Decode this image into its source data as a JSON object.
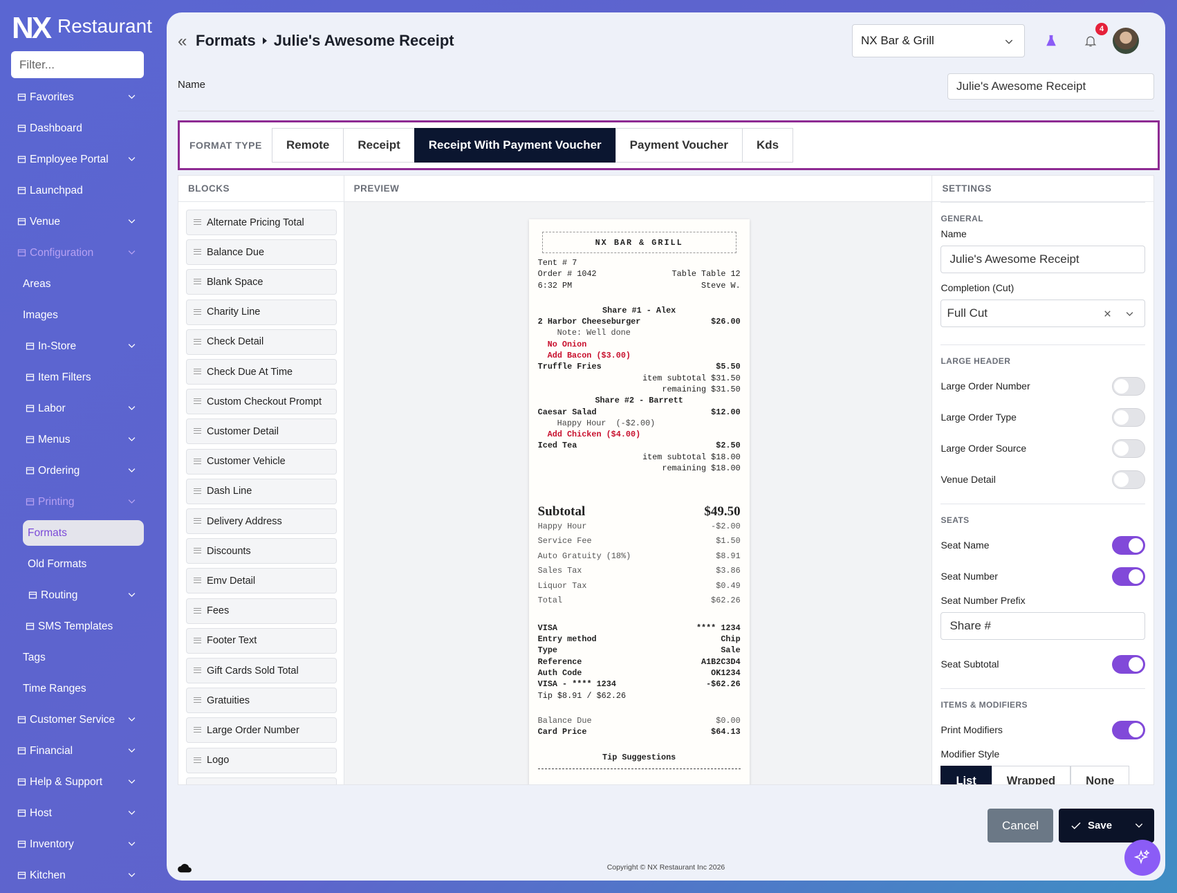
{
  "sidebar": {
    "brand": "NX",
    "brand_name": "Restaurant",
    "filter_placeholder": "Filter...",
    "nav": [
      {
        "label": "Favorites",
        "level": 0,
        "icon": true,
        "expandable": true
      },
      {
        "label": "Dashboard",
        "level": 0,
        "icon": true
      },
      {
        "label": "Employee Portal",
        "level": 0,
        "icon": true,
        "expandable": true
      },
      {
        "label": "Launchpad",
        "level": 0,
        "icon": true
      },
      {
        "label": "Venue",
        "level": 0,
        "icon": true,
        "expandable": true
      },
      {
        "label": "Configuration",
        "level": 0,
        "icon": true,
        "expandable": true,
        "state": "open"
      },
      {
        "label": "Areas",
        "level": 1
      },
      {
        "label": "Images",
        "level": 1
      },
      {
        "label": "In-Store",
        "level": 1,
        "icon": true,
        "expandable": true
      },
      {
        "label": "Item Filters",
        "level": 1,
        "icon": true
      },
      {
        "label": "Labor",
        "level": 1,
        "icon": true,
        "expandable": true
      },
      {
        "label": "Menus",
        "level": 1,
        "icon": true,
        "expandable": true
      },
      {
        "label": "Ordering",
        "level": 1,
        "icon": true,
        "expandable": true
      },
      {
        "label": "Printing",
        "level": 1,
        "icon": true,
        "expandable": true,
        "state": "open"
      },
      {
        "label": "Formats",
        "level": 2,
        "state": "active"
      },
      {
        "label": "Old Formats",
        "level": 2
      },
      {
        "label": "Routing",
        "level": 2,
        "icon": true,
        "expandable": true
      },
      {
        "label": "SMS Templates",
        "level": 1,
        "icon": true
      },
      {
        "label": "Tags",
        "level": 1
      },
      {
        "label": "Time Ranges",
        "level": 1
      },
      {
        "label": "Customer Service",
        "level": 0,
        "icon": true,
        "expandable": true
      },
      {
        "label": "Financial",
        "level": 0,
        "icon": true,
        "expandable": true
      },
      {
        "label": "Help & Support",
        "level": 0,
        "icon": true,
        "expandable": true
      },
      {
        "label": "Host",
        "level": 0,
        "icon": true,
        "expandable": true
      },
      {
        "label": "Inventory",
        "level": 0,
        "icon": true,
        "expandable": true
      },
      {
        "label": "Kitchen",
        "level": 0,
        "icon": true,
        "expandable": true
      }
    ]
  },
  "header": {
    "breadcrumb": [
      "Formats",
      "Julie's Awesome Receipt"
    ],
    "venue": "NX Bar & Grill",
    "notifications": 4
  },
  "name_field": {
    "label": "Name",
    "value": "Julie's Awesome Receipt"
  },
  "format_type": {
    "label": "FORMAT TYPE",
    "options": [
      "Remote",
      "Receipt",
      "Receipt With Payment Voucher",
      "Payment Voucher",
      "Kds"
    ],
    "selected": 2
  },
  "blocks": {
    "title": "BLOCKS",
    "items": [
      "Alternate Pricing Total",
      "Balance Due",
      "Blank Space",
      "Charity Line",
      "Check Detail",
      "Check Due At Time",
      "Custom Checkout Prompt",
      "Customer Detail",
      "Customer Vehicle",
      "Dash Line",
      "Delivery Address",
      "Discounts",
      "Emv Detail",
      "Fees",
      "Footer Text",
      "Gift Cards Sold Total",
      "Gratuities",
      "Large Order Number",
      "Logo"
    ]
  },
  "preview": {
    "title": "PREVIEW",
    "receipt": {
      "header": "NX BAR & GRILL",
      "sections": [
        {
          "lines": [
            {
              "left": "Tent # 7"
            },
            {
              "left": "Order # 1042",
              "right": "Table Table 12"
            },
            {
              "left": "6:32 PM",
              "right": "Steve W."
            }
          ]
        },
        {
          "lines": [
            {
              "left": "Share #1 - Alex",
              "style": "bold center"
            },
            {
              "left": "2 Harbor Cheeseburger",
              "right": "$26.00",
              "style": "bold"
            },
            {
              "left": "Note: Well done",
              "style": "indent2"
            },
            {
              "left": "No Onion",
              "style": "red indent1"
            },
            {
              "left": "Add Bacon ($3.00)",
              "style": "red indent1"
            },
            {
              "left": "Truffle Fries",
              "right": "$5.50",
              "style": "bold"
            },
            {
              "right": "item subtotal $31.50"
            },
            {
              "right": "remaining $31.50"
            },
            {
              "left": "Share #2 - Barrett",
              "style": "bold center"
            },
            {
              "left": "Caesar Salad",
              "right": "$12.00",
              "style": "bold"
            },
            {
              "left": "Happy Hour  (-$2.00)",
              "style": "indent2"
            },
            {
              "left": "Add Chicken ($4.00)",
              "style": "red indent1"
            },
            {
              "left": "Iced Tea",
              "right": "$2.50",
              "style": "bold"
            },
            {
              "right": "item subtotal $18.00"
            },
            {
              "right": "remaining $18.00"
            }
          ]
        },
        {
          "style": "totals",
          "lines": [
            {
              "left": "Subtotal",
              "right": "$49.50",
              "style": "big"
            },
            {
              "left": "Happy Hour",
              "right": "-$2.00",
              "style": "muted"
            },
            {
              "left": "Service Fee",
              "right": "$1.50",
              "style": "muted"
            },
            {
              "left": "Auto Gratuity (18%)",
              "right": "$8.91",
              "style": "muted"
            },
            {
              "left": "Sales Tax",
              "right": "$3.86",
              "style": "muted"
            },
            {
              "left": "Liquor Tax",
              "right": "$0.49",
              "style": "muted"
            },
            {
              "left": "Total",
              "right": "$62.26",
              "style": "muted"
            }
          ]
        },
        {
          "lines": [
            {
              "left": "VISA",
              "right": "**** 1234",
              "style": "bold"
            },
            {
              "left": "Entry method",
              "right": "Chip",
              "style": "bold"
            },
            {
              "left": "Type",
              "right": "Sale",
              "style": "bold"
            },
            {
              "left": "Reference",
              "right": "A1B2C3D4",
              "style": "bold"
            },
            {
              "left": "Auth Code",
              "right": "OK1234",
              "style": "bold"
            },
            {
              "left": "VISA - **** 1234",
              "right": "-$62.26",
              "style": "bold"
            },
            {
              "left": "Tip $8.91 / $62.26"
            }
          ]
        },
        {
          "lines": [
            {
              "left": "Balance Due",
              "right": "$0.00",
              "style": "muted"
            },
            {
              "left": "Card Price",
              "right": "$64.13",
              "style": "bold"
            }
          ]
        },
        {
          "lines": [
            {
              "left": "Tip Suggestions",
              "style": "bold center"
            }
          ]
        }
      ]
    }
  },
  "settings": {
    "title": "SETTINGS",
    "sections": [
      {
        "title": "GENERAL",
        "fields": [
          {
            "label": "Name",
            "type": "text",
            "value": "Julie's Awesome Receipt"
          },
          {
            "label": "Completion (Cut)",
            "type": "select",
            "value": "Full Cut"
          }
        ]
      },
      {
        "title": "LARGE HEADER",
        "fields": [
          {
            "label": "Large Order Number",
            "type": "toggle",
            "on": false
          },
          {
            "label": "Large Order Type",
            "type": "toggle",
            "on": false
          },
          {
            "label": "Large Order Source",
            "type": "toggle",
            "on": false
          },
          {
            "label": "Venue Detail",
            "type": "toggle",
            "on": false
          }
        ]
      },
      {
        "title": "SEATS",
        "fields": [
          {
            "label": "Seat Name",
            "type": "toggle",
            "on": true
          },
          {
            "label": "Seat Number",
            "type": "toggle",
            "on": true
          },
          {
            "label": "Seat Number Prefix",
            "type": "text",
            "value": "Share #"
          },
          {
            "label": "Seat Subtotal",
            "type": "toggle",
            "on": true
          }
        ]
      },
      {
        "title": "ITEMS & MODIFIERS",
        "fields": [
          {
            "label": "Print Modifiers",
            "type": "toggle",
            "on": true
          },
          {
            "label": "Modifier Style",
            "type": "segmented",
            "options": [
              "List",
              "Wrapped",
              "None"
            ],
            "selected": 0
          }
        ]
      }
    ]
  },
  "actions": {
    "cancel": "Cancel",
    "save": "Save"
  },
  "footer": {
    "copyright": "Copyright © NX Restaurant Inc 2026"
  }
}
